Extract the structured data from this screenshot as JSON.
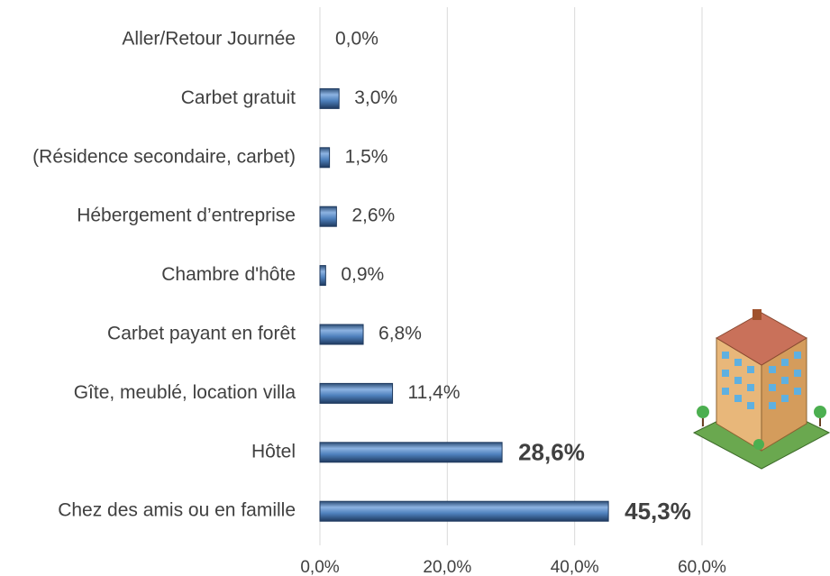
{
  "chart_data": {
    "type": "hbar",
    "categories": [
      "Aller/Retour Journée",
      "Carbet gratuit",
      "(Résidence secondaire, carbet)",
      "Hébergement d’entreprise",
      "Chambre d'hôte",
      "Carbet payant en forêt",
      "Gîte, meublé, location villa",
      "Hôtel",
      "Chez des amis ou en famille"
    ],
    "values": [
      0.0,
      3.0,
      1.5,
      2.6,
      0.9,
      6.8,
      11.4,
      28.6,
      45.3
    ],
    "value_labels": [
      "0,0%",
      "3,0%",
      "1,5%",
      "2,6%",
      "0,9%",
      "6,8%",
      "11,4%",
      "28,6%",
      "45,3%"
    ],
    "value_label_colors": [
      "#404040",
      "#404040",
      "#404040",
      "#404040",
      "#404040",
      "#404040",
      "#404040",
      "#7fb2e5",
      "#7fb2e5"
    ],
    "color": "#4f81bd",
    "xlim": [
      0,
      60
    ],
    "xticks": [
      {
        "value": 0,
        "label": "0,0%"
      },
      {
        "value": 20,
        "label": "20,0%"
      },
      {
        "value": 40,
        "label": "40,0%"
      },
      {
        "value": 60,
        "label": "60,0%"
      }
    ],
    "grid": true
  }
}
